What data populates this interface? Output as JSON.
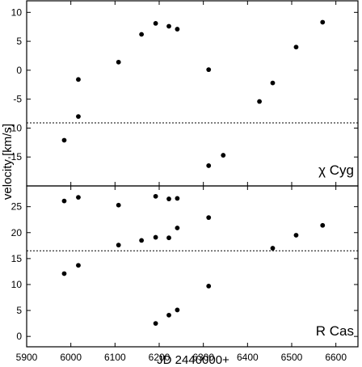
{
  "chart_data": {
    "type": "scatter",
    "xlabel": "JD 2440000+",
    "ylabel": "velocity [km/s]",
    "xlim": [
      5900,
      6650
    ],
    "xticks": [
      5900,
      6000,
      6100,
      6200,
      6300,
      6400,
      6500,
      6600
    ],
    "panels": [
      {
        "label": "χ Cyg",
        "ylim": [
          -20,
          12
        ],
        "yticks": [
          10,
          5,
          0,
          -5,
          -10,
          -15
        ],
        "reference_line": -9.1,
        "points": [
          [
            5985,
            -12.1
          ],
          [
            6017,
            -1.6
          ],
          [
            6017,
            -8.0
          ],
          [
            6108,
            1.4
          ],
          [
            6160,
            6.2
          ],
          [
            6192,
            8.1
          ],
          [
            6222,
            7.6
          ],
          [
            6241,
            7.1
          ],
          [
            6312,
            0.1
          ],
          [
            6312,
            -16.5
          ],
          [
            6345,
            -14.7
          ],
          [
            6427,
            -5.4
          ],
          [
            6457,
            -2.2
          ],
          [
            6510,
            4.0
          ],
          [
            6570,
            8.3
          ]
        ]
      },
      {
        "label": "R Cas",
        "ylim": [
          -2,
          29
        ],
        "yticks": [
          25,
          20,
          15,
          10,
          5,
          0
        ],
        "reference_line": 16.5,
        "points": [
          [
            5985,
            26.1
          ],
          [
            5985,
            12.1
          ],
          [
            6017,
            26.8
          ],
          [
            6017,
            13.7
          ],
          [
            6108,
            25.3
          ],
          [
            6108,
            17.6
          ],
          [
            6160,
            18.5
          ],
          [
            6192,
            27.0
          ],
          [
            6192,
            19.1
          ],
          [
            6192,
            2.5
          ],
          [
            6222,
            26.5
          ],
          [
            6222,
            19.0
          ],
          [
            6222,
            4.1
          ],
          [
            6241,
            26.6
          ],
          [
            6241,
            20.9
          ],
          [
            6241,
            5.1
          ],
          [
            6312,
            22.9
          ],
          [
            6312,
            9.7
          ],
          [
            6457,
            17.0
          ],
          [
            6510,
            19.5
          ],
          [
            6570,
            21.4
          ]
        ]
      }
    ]
  }
}
